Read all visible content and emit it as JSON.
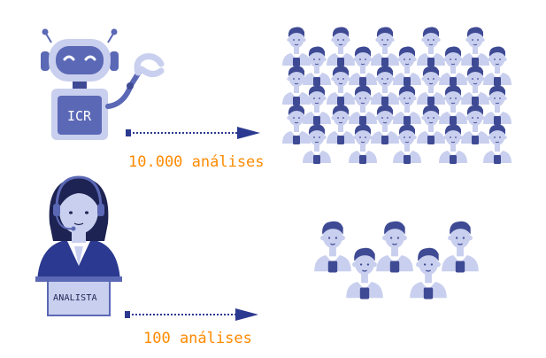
{
  "robot": {
    "badge": "ICR",
    "count_label": "10.000 análises",
    "icon": "robot-icon"
  },
  "analyst": {
    "badge": "ANALISTA",
    "count_label": "100 análises",
    "icon": "analyst-headset-icon"
  },
  "colors": {
    "primary": "#5b68b5",
    "primary_dark": "#3e4a94",
    "light": "#c9cfee",
    "hair": "#3e4a94",
    "accent": "#ff8a00",
    "arrow": "#2b3990"
  },
  "icons": [
    "robot-icon",
    "analyst-headset-icon",
    "arrow-right-icon",
    "person-icon"
  ]
}
